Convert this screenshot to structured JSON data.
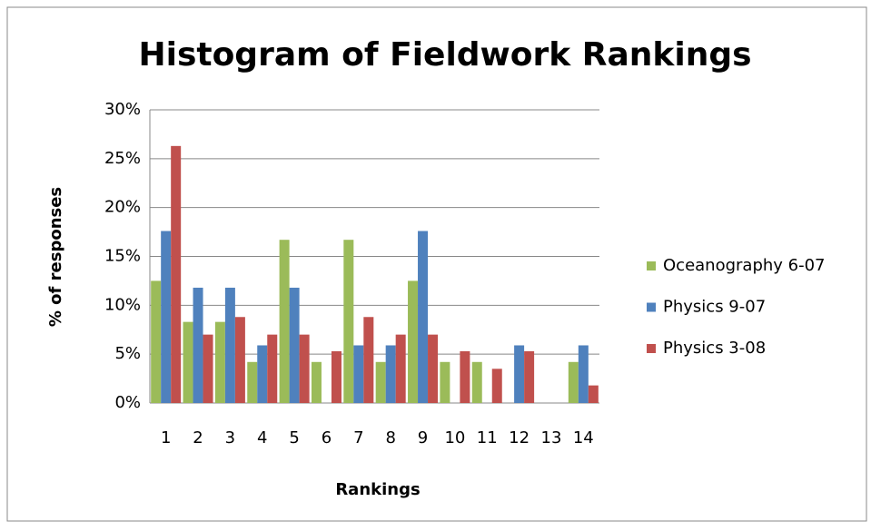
{
  "chart_data": {
    "type": "bar",
    "title": "Histogram of Fieldwork Rankings",
    "x_label": "Rankings",
    "y_label": "% of responses",
    "categories": [
      "1",
      "2",
      "3",
      "4",
      "5",
      "6",
      "7",
      "8",
      "9",
      "10",
      "11",
      "12",
      "13",
      "14"
    ],
    "series": [
      {
        "name": "Oceanography 6-07",
        "color": "#9bbb59",
        "values": [
          12.5,
          8.3,
          8.3,
          4.2,
          16.7,
          4.2,
          16.7,
          4.2,
          12.5,
          4.2,
          4.2,
          0,
          0,
          4.2
        ]
      },
      {
        "name": "Physics 9-07",
        "color": "#4f81bd",
        "values": [
          17.6,
          11.8,
          11.8,
          5.9,
          11.8,
          0,
          5.9,
          5.9,
          17.6,
          0,
          0,
          5.9,
          0,
          5.9
        ]
      },
      {
        "name": "Physics 3-08",
        "color": "#c0504d",
        "values": [
          26.3,
          7.0,
          8.8,
          7.0,
          7.0,
          5.3,
          8.8,
          7.0,
          7.0,
          5.3,
          3.5,
          5.3,
          0,
          1.8
        ]
      }
    ],
    "ylim": [
      0,
      30
    ],
    "yticks": [
      {
        "value": 0,
        "label": "0%"
      },
      {
        "value": 5,
        "label": "5%"
      },
      {
        "value": 10,
        "label": "10%"
      },
      {
        "value": 15,
        "label": "15%"
      },
      {
        "value": 20,
        "label": "20%"
      },
      {
        "value": 25,
        "label": "25%"
      },
      {
        "value": 30,
        "label": "30%"
      }
    ],
    "grid": true,
    "legend": "right"
  }
}
